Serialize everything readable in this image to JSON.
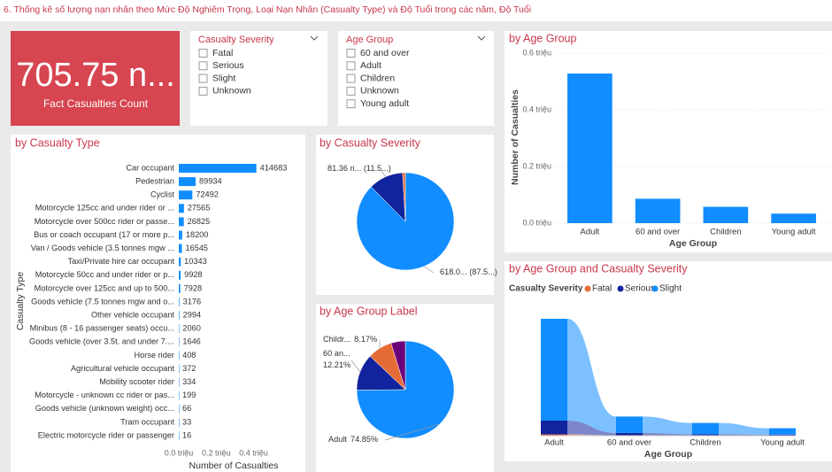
{
  "header": {
    "title": "6. Thống kê số lượng nạn nhân theo Mức Độ Nghiêm Trọng, Loại Nạn Nhân (Casualty Type) và Độ Tuổi trong các năm, Độ Tuổi"
  },
  "kpi": {
    "value_label": "705.75 n...",
    "label": "Fact Casualties Count"
  },
  "slicers": [
    {
      "title": "Casualty Severity",
      "items": [
        "Fatal",
        "Serious",
        "Slight",
        "Unknown"
      ]
    },
    {
      "title": "Age Group",
      "items": [
        "60 and over",
        "Adult",
        "Children",
        "Unknown",
        "Young adult"
      ]
    }
  ],
  "chart_data": [
    {
      "type": "bar",
      "horizontal": true,
      "title": "by Casualty Type",
      "x_label": "Number of Casualties",
      "y_label": "Casualty Type",
      "color": "#118dff",
      "categories": [
        "Car occupant",
        "Pedestrian",
        "Cyclist",
        "Motorcycle 125cc and under rider or ...",
        "Motorcycle over 500cc rider or passe...",
        "Bus or coach occupant (17 or more p...",
        "Van / Goods vehicle (3.5 tonnes mgw ...",
        "Taxi/Private hire car occupant",
        "Motorcycle 50cc and under rider or p...",
        "Motorcycle over 125cc and up to 500...",
        "Goods vehicle (7.5 tonnes mgw and o...",
        "Other vehicle occupant",
        "Minibus (8 - 16 passenger seats) occu...",
        "Goods vehicle (over 3.5t. and under 7....",
        "Horse rider",
        "Agricultural vehicle occupant",
        "Mobility scooter rider",
        "Motorcycle - unknown cc rider or pas...",
        "Goods vehicle (unknown weight) occ...",
        "Tram occupant",
        "Electric motorcycle rider or passenger"
      ],
      "values": [
        414683,
        89934,
        72492,
        27565,
        26825,
        18200,
        16545,
        10343,
        9928,
        7928,
        3176,
        2994,
        2060,
        1646,
        408,
        372,
        334,
        199,
        66,
        33,
        16
      ],
      "xlim": [
        0,
        440000
      ],
      "xticks": [
        {
          "value": 0,
          "label": "0.0 triệu"
        },
        {
          "value": 200000,
          "label": "0.2 triệu"
        },
        {
          "value": 400000,
          "label": "0.4 triệu"
        }
      ],
      "grid": false
    },
    {
      "type": "pie",
      "title": "by Casualty Severity",
      "values": [
        618000,
        81360,
        6390
      ],
      "value_labels": [
        "618.0... (87.5...)",
        "81.36 n... (11.5...)",
        null
      ],
      "colors": [
        "#118dff",
        "#12239e",
        "#e66c37"
      ]
    },
    {
      "type": "pie",
      "title": "by Age Group Label",
      "categories": [
        "Adult",
        "60 an...",
        "Childr...",
        null
      ],
      "values": [
        74.85,
        12.21,
        8.17,
        4.77
      ],
      "value_labels": [
        "74.85%",
        "12.21%",
        "8.17%",
        null
      ],
      "colors": [
        "#118dff",
        "#12239e",
        "#e66c37",
        "#6b007b"
      ]
    },
    {
      "type": "bar",
      "horizontal": false,
      "title": "by Age Group",
      "x_label": "Age Group",
      "y_label": "Number of Casualties",
      "color": "#118dff",
      "categories": [
        "Adult",
        "60 and over",
        "Children",
        "Young adult"
      ],
      "values": [
        528000,
        86170,
        57660,
        33660
      ],
      "ylim": [
        0,
        600000
      ],
      "yticks": [
        {
          "value": 0,
          "label": "0.0 triệu"
        },
        {
          "value": 200000,
          "label": "0.2 triệu"
        },
        {
          "value": 400000,
          "label": "0.4 triệu"
        },
        {
          "value": 600000,
          "label": "0.6 triệu"
        }
      ],
      "grid": true
    },
    {
      "type": "ribbon",
      "title": "by Age Group and Casualty Severity",
      "legend_title": "Casualty Severity",
      "x_label": "Age Group",
      "categories": [
        "Adult",
        "60 and over",
        "Children",
        "Young adult"
      ],
      "series": [
        {
          "name": "Fatal",
          "color": "#e66c37",
          "values": [
            6000,
            1500,
            600,
            400
          ]
        },
        {
          "name": "Serious",
          "color": "#12239e",
          "values": [
            62000,
            11000,
            6000,
            4300
          ]
        },
        {
          "name": "Slight",
          "color": "#118dff",
          "values": [
            460000,
            74000,
            51000,
            29000
          ]
        }
      ]
    }
  ]
}
